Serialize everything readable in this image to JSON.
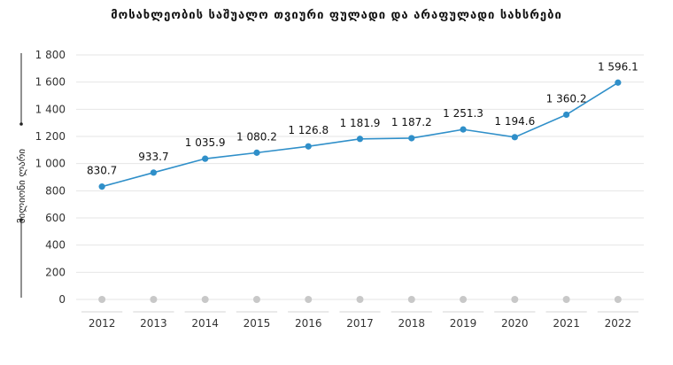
{
  "chart_data": {
    "type": "line",
    "title": "მოსახლეობის საშუალო თვიური ფულადი და არაფულადი სახსრები",
    "xlabel": "",
    "ylabel": "მილიონი ლარი",
    "categories": [
      "2012",
      "2013",
      "2014",
      "2015",
      "2016",
      "2017",
      "2018",
      "2019",
      "2020",
      "2021",
      "2022"
    ],
    "series": [
      {
        "values": [
          830.7,
          933.7,
          1035.9,
          1080.2,
          1126.8,
          1181.9,
          1187.2,
          1251.3,
          1194.6,
          1360.2,
          1596.1
        ],
        "labels": [
          "830.7",
          "933.7",
          "1 035.9",
          "1 080.2",
          "1 126.8",
          "1 181.9",
          "1 187.2",
          "1 251.3",
          "1 194.6",
          "1 360.2",
          "1 596.1"
        ]
      }
    ],
    "ylim": [
      0,
      1800
    ],
    "yticks": [
      "0",
      "200",
      "400",
      "600",
      "800",
      "1 000",
      "1 200",
      "1 400",
      "1 600",
      "1 800"
    ],
    "grid": true,
    "colors": {
      "line": "#2f8fc9",
      "point": "#2f8fc9",
      "grid": "#e6e6e6",
      "baseline_marker": "#c8c8c8"
    }
  }
}
